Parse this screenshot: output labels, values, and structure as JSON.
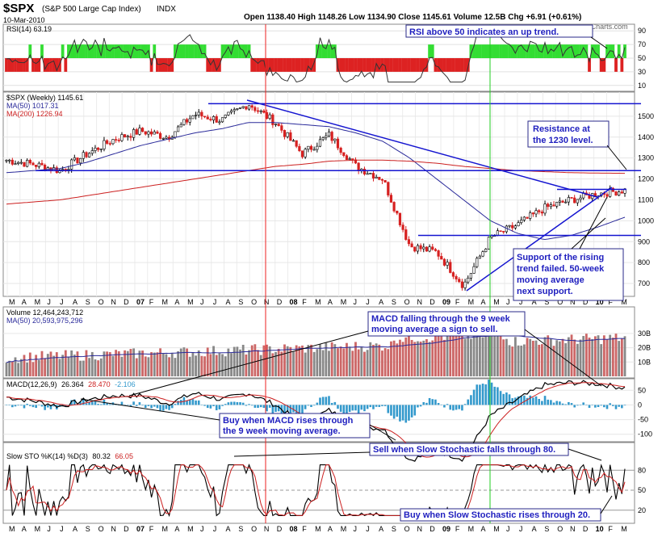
{
  "header": {
    "symbol": "$SPX",
    "name": "(S&P 500 Large Cap Index)",
    "exchange": "INDX",
    "date": "10-Mar-2010",
    "quote": "Open 1138.40  High 1148.26  Low 1134.90  Close 1145.61  Volume 12.5B  Chg +6.91 (+0.61%)",
    "watermark": "© StockCharts.com"
  },
  "colors": {
    "up": "#000000",
    "down": "#d62020",
    "ma50": "#2a2a9a",
    "ma200": "#cc2020",
    "trend": "#1414d0",
    "rsi_up": "#33dd33",
    "rsi_down": "#dd2222",
    "macd_hist": "#3399cc",
    "vol_up": "#888888",
    "vol_down": "#cc6666"
  },
  "xaxis_months": [
    "M",
    "A",
    "M",
    "J",
    "J",
    "A",
    "S",
    "O",
    "N",
    "D",
    "07",
    "F",
    "M",
    "A",
    "M",
    "J",
    "J",
    "A",
    "S",
    "O",
    "N",
    "D",
    "08",
    "F",
    "M",
    "A",
    "M",
    "J",
    "J",
    "A",
    "S",
    "O",
    "N",
    "D",
    "09",
    "F",
    "M",
    "A",
    "M",
    "J",
    "J",
    "A",
    "S",
    "O",
    "N",
    "D",
    "10",
    "F",
    "M"
  ],
  "panels": {
    "rsi": {
      "legend": "RSI(14) 63.19",
      "ticks": [
        "90",
        "70",
        "50",
        "30",
        "10"
      ],
      "annotation": "RSI above 50 indicates an up trend."
    },
    "price": {
      "legend_main": "$SPX (Weekly) 1145.61",
      "legend_ma50": "MA(50) 1017.31",
      "legend_ma200": "MA(200) 1226.94",
      "ticks": [
        "1500",
        "1400",
        "1300",
        "1200",
        "1100",
        "1000",
        "900",
        "800",
        "700"
      ],
      "annotation1": [
        "Resistance at",
        "the 1230 level."
      ],
      "annotation2": [
        "Support of the rising",
        "trend failed. 50-week",
        "moving average",
        "next support."
      ]
    },
    "volume": {
      "legend_main": "Volume 12,464,243,712",
      "legend_ma": "MA(50) 20,593,975,296",
      "ticks": [
        "30B",
        "20B",
        "10B"
      ],
      "annotation": [
        "MACD falling through the 9 week",
        "moving average a sign to sell."
      ]
    },
    "macd": {
      "legend_label": "MACD(12,26,9)",
      "legend_v1": "26.364",
      "legend_v2": "28.470",
      "legend_v3": "-2.106",
      "ticks": [
        "50",
        "0",
        "-50",
        "-100"
      ],
      "annotation": [
        "Buy when MACD rises through",
        "the 9 week moving average."
      ]
    },
    "sto": {
      "legend_label": "Slow STO %K(14) %D(3)",
      "legend_v1": "80.32",
      "legend_v2": "66.05",
      "ticks": [
        "80",
        "50",
        "20"
      ],
      "annotation_sell": "Sell when Slow Stochastic falls through 80.",
      "annotation_buy": "Buy when Slow Stochastic rises through 20."
    }
  },
  "chart_data": {
    "type": "line",
    "title": "$SPX (S&P 500 Large Cap Index) Weekly",
    "price_ylim": [
      650,
      1600
    ],
    "resistance_levels": [
      1560,
      1240,
      1150,
      930
    ],
    "weekly_close_approx": {
      "dates": [
        "2006-03",
        "2006-05",
        "2006-07",
        "2006-09",
        "2006-11",
        "2007-01",
        "2007-03",
        "2007-05",
        "2007-07",
        "2007-10",
        "2007-12",
        "2008-03",
        "2008-05",
        "2008-07",
        "2008-09",
        "2008-11",
        "2009-01",
        "2009-03",
        "2009-05",
        "2009-07",
        "2009-09",
        "2009-11",
        "2010-01",
        "2010-03"
      ],
      "values": [
        1290,
        1270,
        1240,
        1320,
        1390,
        1430,
        1400,
        1510,
        1480,
        1560,
        1470,
        1320,
        1410,
        1260,
        1200,
        880,
        850,
        690,
        920,
        980,
        1060,
        1100,
        1130,
        1146
      ]
    },
    "ma50_approx": [
      1230,
      1240,
      1250,
      1280,
      1320,
      1360,
      1390,
      1420,
      1440,
      1470,
      1470,
      1460,
      1450,
      1420,
      1380,
      1300,
      1200,
      1100,
      1000,
      940,
      910,
      930,
      970,
      1017
    ],
    "ma200_approx": [
      1080,
      1090,
      1100,
      1120,
      1140,
      1160,
      1180,
      1200,
      1220,
      1240,
      1260,
      1270,
      1285,
      1290,
      1290,
      1285,
      1275,
      1260,
      1250,
      1240,
      1235,
      1230,
      1228,
      1227
    ]
  }
}
